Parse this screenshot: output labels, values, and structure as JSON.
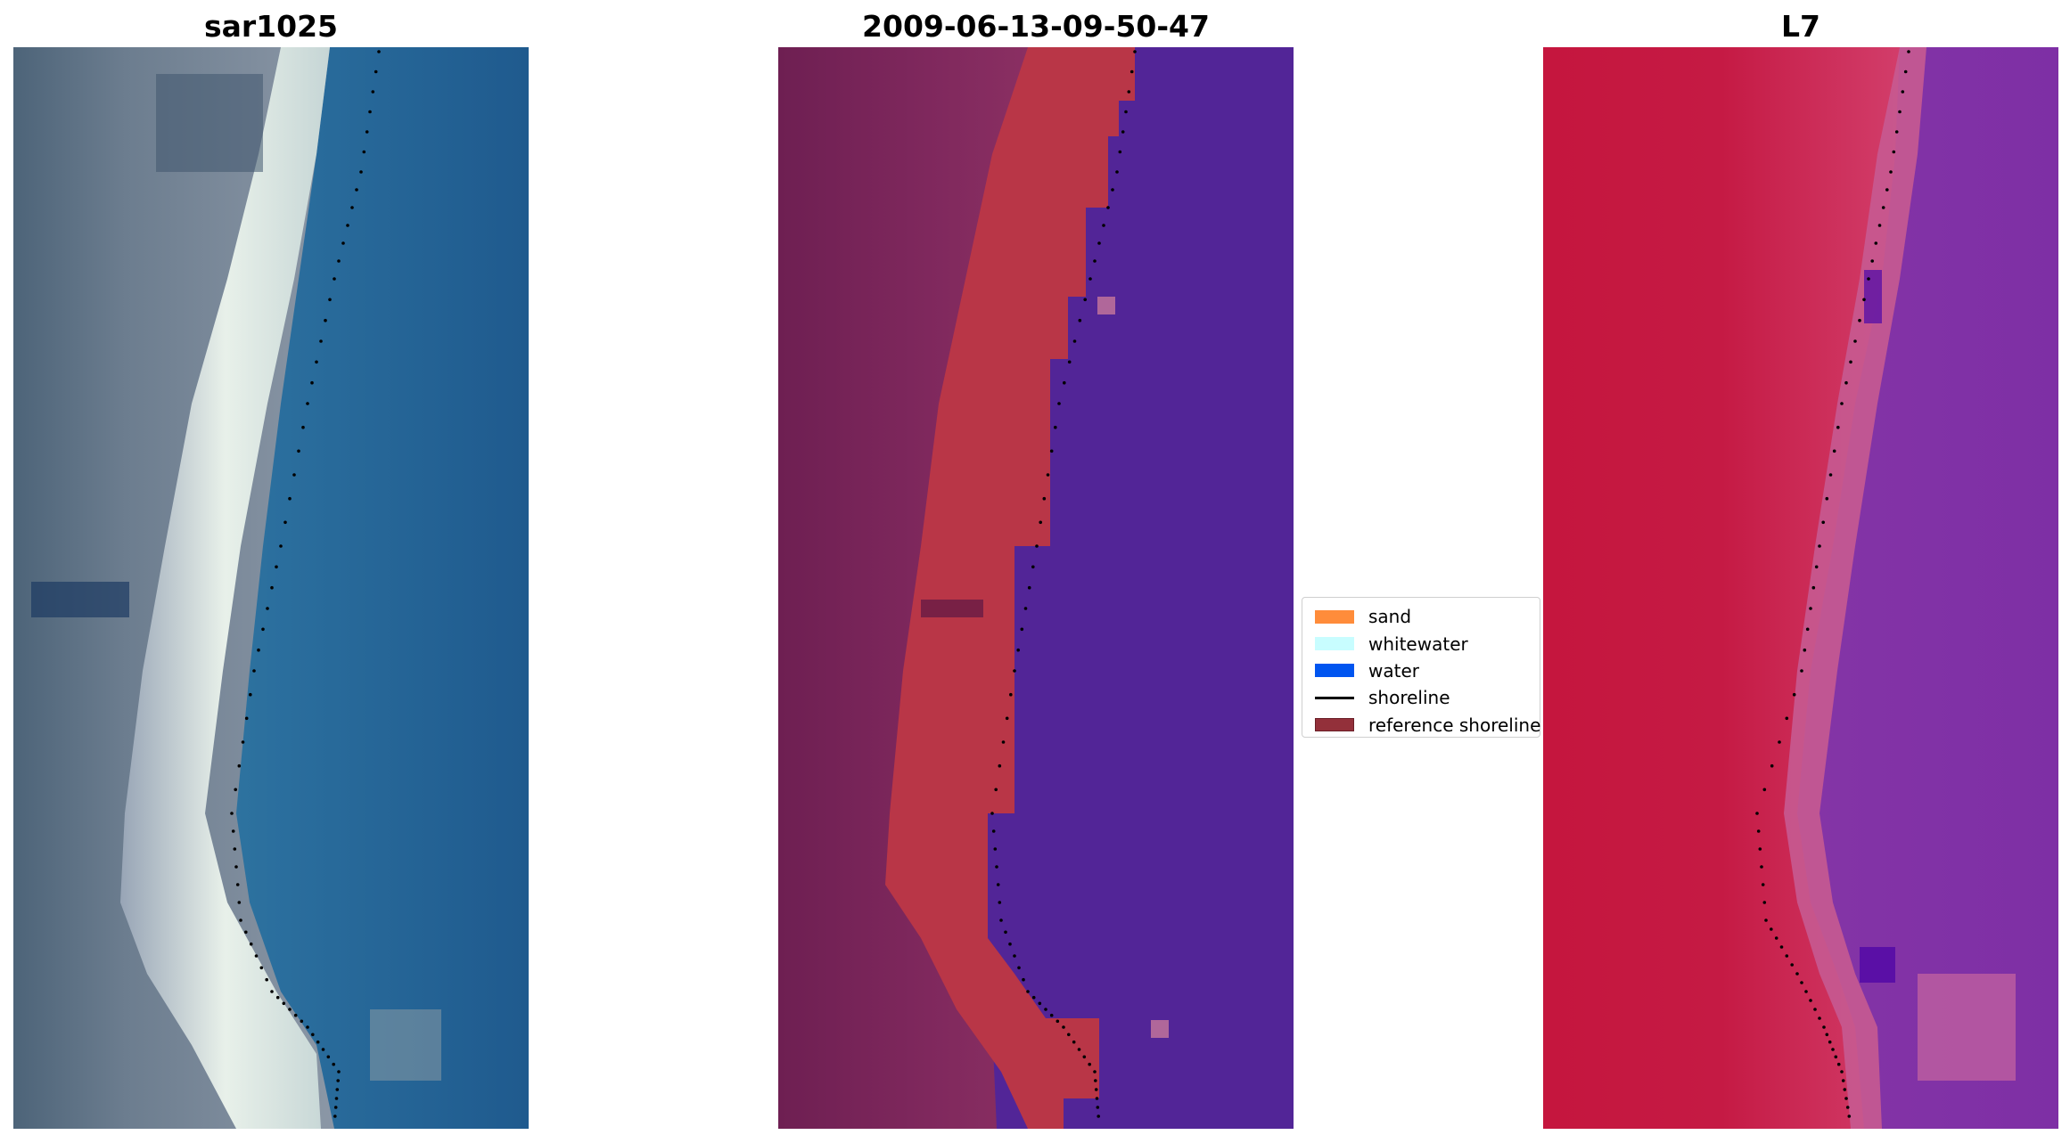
{
  "panels": [
    {
      "title": "sar1025"
    },
    {
      "title": "2009-06-13-09-50-47"
    },
    {
      "title": "L7"
    }
  ],
  "legend": {
    "items": [
      {
        "label": "sand",
        "color": "#ff8c3a",
        "kind": "patch"
      },
      {
        "label": "whitewater",
        "color": "#c8fdff",
        "kind": "patch"
      },
      {
        "label": "water",
        "color": "#0055f0",
        "kind": "patch"
      },
      {
        "label": "shoreline",
        "color": "#000000",
        "kind": "line"
      },
      {
        "label": "reference shoreline",
        "color": "#93303a",
        "kind": "patch"
      }
    ]
  }
}
